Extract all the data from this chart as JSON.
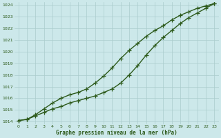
{
  "title": "Graphe pression niveau de la mer (hPa)",
  "bg_color": "#cce8ea",
  "grid_color": "#aacccc",
  "line_color": "#2d5a1b",
  "xlim": [
    -0.5,
    23.5
  ],
  "ylim": [
    1013.8,
    1024.2
  ],
  "xticks": [
    0,
    1,
    2,
    3,
    4,
    5,
    6,
    7,
    8,
    9,
    10,
    11,
    12,
    13,
    14,
    15,
    16,
    17,
    18,
    19,
    20,
    21,
    22,
    23
  ],
  "yticks": [
    1014,
    1015,
    1016,
    1017,
    1018,
    1019,
    1020,
    1021,
    1022,
    1023,
    1024
  ],
  "line_upper_x": [
    0,
    1,
    2,
    3,
    4,
    5,
    6,
    7,
    8,
    9,
    10,
    11,
    12,
    13,
    14,
    15,
    16,
    17,
    18,
    19,
    20,
    21,
    22,
    23
  ],
  "line_upper_y": [
    1014.1,
    1014.2,
    1014.6,
    1015.1,
    1015.6,
    1016.0,
    1016.3,
    1016.5,
    1016.8,
    1017.3,
    1017.9,
    1018.6,
    1019.4,
    1020.1,
    1020.7,
    1021.3,
    1021.8,
    1022.2,
    1022.7,
    1023.1,
    1023.4,
    1023.7,
    1023.9,
    1024.1
  ],
  "line_lower_x": [
    0,
    1,
    2,
    3,
    4,
    5,
    6,
    7,
    8,
    9,
    10,
    11,
    12,
    13,
    14,
    15,
    16,
    17,
    18,
    19,
    20,
    21,
    22,
    23
  ],
  "line_lower_y": [
    1014.1,
    1014.2,
    1014.5,
    1014.8,
    1015.1,
    1015.3,
    1015.6,
    1015.8,
    1016.0,
    1016.2,
    1016.5,
    1016.8,
    1017.3,
    1018.0,
    1018.8,
    1019.7,
    1020.5,
    1021.2,
    1021.8,
    1022.4,
    1022.9,
    1023.3,
    1023.7,
    1024.1
  ],
  "marker": "+",
  "markersize": 4,
  "linewidth": 1.0,
  "figsize": [
    3.2,
    2.0
  ],
  "dpi": 100
}
